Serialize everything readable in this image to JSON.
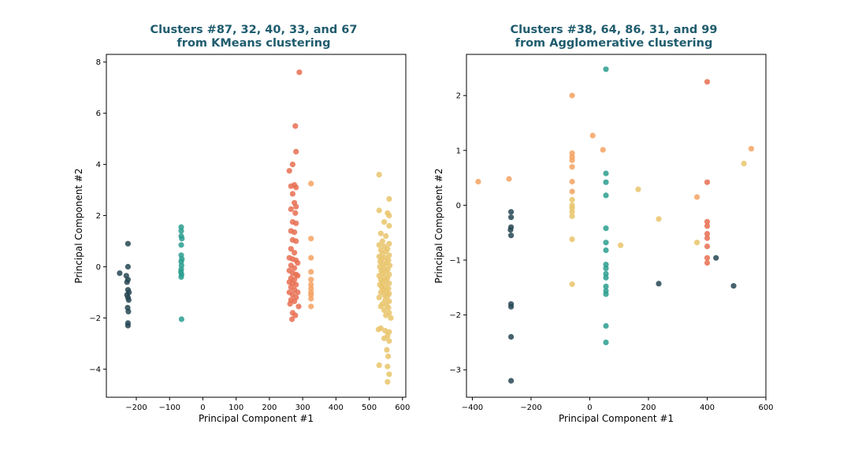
{
  "chart_data": [
    {
      "type": "scatter",
      "title": [
        "Clusters #87, 32, 40, 33, and 67",
        "from KMeans clustering"
      ],
      "xlabel": "Principal Component #1",
      "ylabel": "Principal Component #2",
      "xlim": [
        -290,
        610
      ],
      "ylim": [
        -5.1,
        8.3
      ],
      "xticks": [
        -200,
        -100,
        0,
        100,
        200,
        300,
        400,
        500,
        600
      ],
      "yticks": [
        -4,
        -2,
        0,
        2,
        4,
        6,
        8
      ],
      "grid": false,
      "series": [
        {
          "color": "#264653",
          "points": [
            [
              -225,
              0.9
            ],
            [
              -225,
              0.0
            ],
            [
              -250,
              -0.25
            ],
            [
              -230,
              -0.35
            ],
            [
              -225,
              -0.5
            ],
            [
              -228,
              -0.6
            ],
            [
              -225,
              -0.9
            ],
            [
              -222,
              -1.0
            ],
            [
              -228,
              -1.1
            ],
            [
              -225,
              -1.2
            ],
            [
              -223,
              -1.3
            ],
            [
              -226,
              -1.6
            ],
            [
              -224,
              -1.75
            ],
            [
              -225,
              -2.2
            ],
            [
              -225,
              -2.3
            ]
          ]
        },
        {
          "color": "#2a9d8f",
          "points": [
            [
              -65,
              1.55
            ],
            [
              -65,
              1.4
            ],
            [
              -65,
              1.2
            ],
            [
              -63,
              1.1
            ],
            [
              -65,
              0.85
            ],
            [
              -65,
              0.45
            ],
            [
              -63,
              0.3
            ],
            [
              -65,
              0.2
            ],
            [
              -64,
              0.05
            ],
            [
              -65,
              -0.1
            ],
            [
              -66,
              -0.2
            ],
            [
              -64,
              -0.3
            ],
            [
              -65,
              -0.4
            ],
            [
              -64,
              -2.05
            ]
          ]
        },
        {
          "color": "#e76f51",
          "points": [
            [
              290,
              7.6
            ],
            [
              278,
              5.5
            ],
            [
              280,
              4.5
            ],
            [
              270,
              4.0
            ],
            [
              260,
              3.75
            ],
            [
              275,
              3.2
            ],
            [
              265,
              3.15
            ],
            [
              280,
              3.1
            ],
            [
              270,
              2.85
            ],
            [
              275,
              2.5
            ],
            [
              280,
              2.35
            ],
            [
              265,
              2.25
            ],
            [
              278,
              2.1
            ],
            [
              270,
              1.75
            ],
            [
              280,
              1.7
            ],
            [
              265,
              1.4
            ],
            [
              275,
              1.35
            ],
            [
              270,
              1.05
            ],
            [
              280,
              1.0
            ],
            [
              265,
              0.7
            ],
            [
              275,
              0.55
            ],
            [
              260,
              0.35
            ],
            [
              270,
              0.3
            ],
            [
              280,
              0.25
            ],
            [
              285,
              0.15
            ],
            [
              265,
              0.05
            ],
            [
              275,
              -0.05
            ],
            [
              260,
              -0.15
            ],
            [
              270,
              -0.25
            ],
            [
              280,
              -0.3
            ],
            [
              285,
              -0.35
            ],
            [
              265,
              -0.45
            ],
            [
              275,
              -0.5
            ],
            [
              260,
              -0.6
            ],
            [
              270,
              -0.65
            ],
            [
              280,
              -0.7
            ],
            [
              265,
              -0.8
            ],
            [
              275,
              -0.9
            ],
            [
              260,
              -1.0
            ],
            [
              285,
              -1.0
            ],
            [
              270,
              -1.1
            ],
            [
              280,
              -1.2
            ],
            [
              265,
              -1.3
            ],
            [
              275,
              -1.35
            ],
            [
              262,
              -1.45
            ],
            [
              288,
              -1.55
            ],
            [
              270,
              -1.8
            ],
            [
              278,
              -1.9
            ],
            [
              268,
              -2.05
            ]
          ]
        },
        {
          "color": "#f4a261",
          "points": [
            [
              325,
              3.25
            ],
            [
              325,
              1.1
            ],
            [
              325,
              0.35
            ],
            [
              325,
              -0.2
            ],
            [
              325,
              -0.5
            ],
            [
              325,
              -0.7
            ],
            [
              325,
              -0.85
            ],
            [
              325,
              -1.0
            ],
            [
              325,
              -1.1
            ],
            [
              325,
              -1.25
            ],
            [
              325,
              -1.55
            ]
          ]
        },
        {
          "color": "#e9c46a",
          "points": [
            [
              530,
              3.6
            ],
            [
              560,
              2.65
            ],
            [
              555,
              2.1
            ],
            [
              560,
              2.0
            ],
            [
              530,
              2.2
            ],
            [
              545,
              1.75
            ],
            [
              560,
              1.6
            ],
            [
              535,
              1.3
            ],
            [
              550,
              1.2
            ],
            [
              540,
              1.0
            ],
            [
              560,
              0.9
            ],
            [
              530,
              0.85
            ],
            [
              545,
              0.8
            ],
            [
              555,
              0.7
            ],
            [
              535,
              0.65
            ],
            [
              550,
              0.6
            ],
            [
              540,
              0.5
            ],
            [
              560,
              0.45
            ],
            [
              530,
              0.4
            ],
            [
              548,
              0.35
            ],
            [
              538,
              0.3
            ],
            [
              558,
              0.25
            ],
            [
              533,
              0.2
            ],
            [
              552,
              0.15
            ],
            [
              542,
              0.1
            ],
            [
              562,
              0.05
            ],
            [
              532,
              0.0
            ],
            [
              546,
              -0.05
            ],
            [
              556,
              -0.1
            ],
            [
              536,
              -0.15
            ],
            [
              550,
              -0.2
            ],
            [
              540,
              -0.25
            ],
            [
              560,
              -0.3
            ],
            [
              530,
              -0.35
            ],
            [
              545,
              -0.4
            ],
            [
              555,
              -0.45
            ],
            [
              535,
              -0.5
            ],
            [
              550,
              -0.55
            ],
            [
              540,
              -0.6
            ],
            [
              560,
              -0.65
            ],
            [
              532,
              -0.7
            ],
            [
              548,
              -0.75
            ],
            [
              538,
              -0.8
            ],
            [
              558,
              -0.85
            ],
            [
              542,
              -0.9
            ],
            [
              552,
              -0.95
            ],
            [
              535,
              -1.0
            ],
            [
              560,
              -1.05
            ],
            [
              545,
              -1.1
            ],
            [
              555,
              -1.15
            ],
            [
              530,
              -1.2
            ],
            [
              548,
              -1.3
            ],
            [
              560,
              -1.35
            ],
            [
              540,
              -1.45
            ],
            [
              552,
              -1.5
            ],
            [
              535,
              -1.55
            ],
            [
              558,
              -1.6
            ],
            [
              545,
              -1.7
            ],
            [
              560,
              -1.8
            ],
            [
              550,
              -1.9
            ],
            [
              565,
              -2.0
            ],
            [
              535,
              -2.4
            ],
            [
              528,
              -2.45
            ],
            [
              548,
              -2.5
            ],
            [
              560,
              -2.55
            ],
            [
              555,
              -2.7
            ],
            [
              545,
              -2.8
            ],
            [
              560,
              -2.9
            ],
            [
              553,
              -3.25
            ],
            [
              557,
              -3.5
            ],
            [
              530,
              -3.85
            ],
            [
              555,
              -3.9
            ],
            [
              560,
              -4.2
            ],
            [
              555,
              -4.5
            ]
          ]
        }
      ]
    },
    {
      "type": "scatter",
      "title": [
        "Clusters #38, 64, 86, 31, and 99",
        "from Agglomerative clustering"
      ],
      "xlabel": "Principal Component #1",
      "ylabel": "Principal Component #2",
      "xlim": [
        -420,
        600
      ],
      "ylim": [
        -3.5,
        2.75
      ],
      "xticks": [
        -400,
        -200,
        0,
        200,
        400,
        600
      ],
      "yticks": [
        -3,
        -2,
        -1,
        0,
        1,
        2
      ],
      "grid": false,
      "series": [
        {
          "color": "#264653",
          "points": [
            [
              -268,
              -0.12
            ],
            [
              -268,
              -0.22
            ],
            [
              -268,
              -0.4
            ],
            [
              -270,
              -0.45
            ],
            [
              -268,
              -0.55
            ],
            [
              -268,
              -1.8
            ],
            [
              -268,
              -1.85
            ],
            [
              -268,
              -2.4
            ],
            [
              -268,
              -3.2
            ],
            [
              235,
              -1.43
            ],
            [
              430,
              -0.96
            ],
            [
              490,
              -1.47
            ]
          ]
        },
        {
          "color": "#2a9d8f",
          "points": [
            [
              55,
              2.48
            ],
            [
              55,
              0.58
            ],
            [
              55,
              0.42
            ],
            [
              55,
              0.18
            ],
            [
              55,
              -0.42
            ],
            [
              55,
              -0.68
            ],
            [
              55,
              -0.82
            ],
            [
              55,
              -1.08
            ],
            [
              55,
              -1.15
            ],
            [
              55,
              -1.25
            ],
            [
              55,
              -1.32
            ],
            [
              55,
              -1.48
            ],
            [
              55,
              -1.56
            ],
            [
              55,
              -1.62
            ],
            [
              55,
              -2.2
            ],
            [
              55,
              -2.5
            ]
          ]
        },
        {
          "color": "#e76f51",
          "points": [
            [
              400,
              2.25
            ],
            [
              400,
              0.42
            ],
            [
              400,
              -0.3
            ],
            [
              400,
              -0.38
            ],
            [
              400,
              -0.52
            ],
            [
              400,
              -0.6
            ],
            [
              400,
              -0.75
            ],
            [
              400,
              -0.96
            ],
            [
              400,
              -1.05
            ]
          ]
        },
        {
          "color": "#f4a261",
          "points": [
            [
              -60,
              2.0
            ],
            [
              -60,
              0.95
            ],
            [
              -60,
              0.88
            ],
            [
              -60,
              0.82
            ],
            [
              -60,
              0.7
            ],
            [
              -60,
              0.43
            ],
            [
              -60,
              0.25
            ],
            [
              10,
              1.27
            ],
            [
              45,
              1.01
            ],
            [
              -380,
              0.43
            ],
            [
              -275,
              0.48
            ],
            [
              365,
              0.15
            ],
            [
              550,
              1.03
            ]
          ]
        },
        {
          "color": "#e9c46a",
          "points": [
            [
              -60,
              0.1
            ],
            [
              -60,
              0.0
            ],
            [
              -60,
              -0.05
            ],
            [
              -60,
              -0.12
            ],
            [
              -60,
              -0.2
            ],
            [
              -60,
              -0.62
            ],
            [
              -60,
              -1.44
            ],
            [
              165,
              0.29
            ],
            [
              235,
              -0.25
            ],
            [
              105,
              -0.73
            ],
            [
              365,
              -0.68
            ],
            [
              525,
              0.76
            ]
          ]
        }
      ]
    }
  ]
}
